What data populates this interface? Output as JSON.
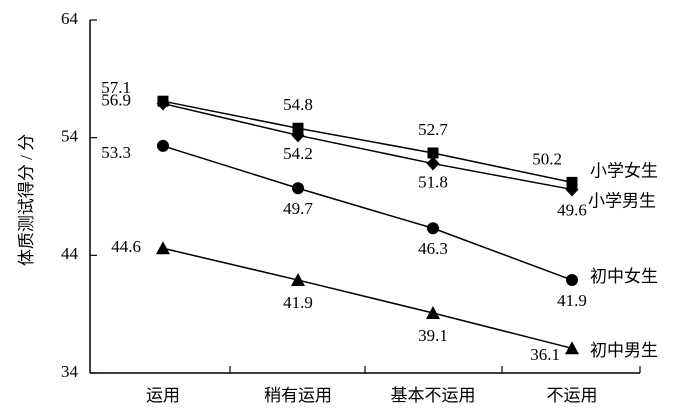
{
  "chart_data": {
    "type": "line",
    "title": "",
    "xlabel": "",
    "ylabel": "体质测试得分 / 分",
    "ylim": [
      34,
      64
    ],
    "yticks": [
      "34",
      "44",
      "54",
      "64"
    ],
    "grid": false,
    "legend": "labels at line ends",
    "categories": [
      "运用",
      "稍有运用",
      "基本不运用",
      "不运用"
    ],
    "series": [
      {
        "name": "小学女生",
        "marker": "square",
        "values": [
          57.1,
          54.8,
          52.7,
          50.2
        ],
        "labels": [
          "57.1",
          "54.8",
          "52.7",
          "50.2"
        ]
      },
      {
        "name": "小学男生",
        "marker": "diamond",
        "values": [
          56.9,
          54.2,
          51.8,
          49.6
        ],
        "labels": [
          "56.9",
          "54.2",
          "51.8",
          "49.6"
        ]
      },
      {
        "name": "初中女生",
        "marker": "circle",
        "values": [
          53.3,
          49.7,
          46.3,
          41.9
        ],
        "labels": [
          "53.3",
          "49.7",
          "46.3",
          "41.9"
        ]
      },
      {
        "name": "初中男生",
        "marker": "triangle",
        "values": [
          44.6,
          41.9,
          39.1,
          36.1
        ],
        "labels": [
          "44.6",
          "41.9",
          "39.1",
          "36.1"
        ]
      }
    ]
  }
}
